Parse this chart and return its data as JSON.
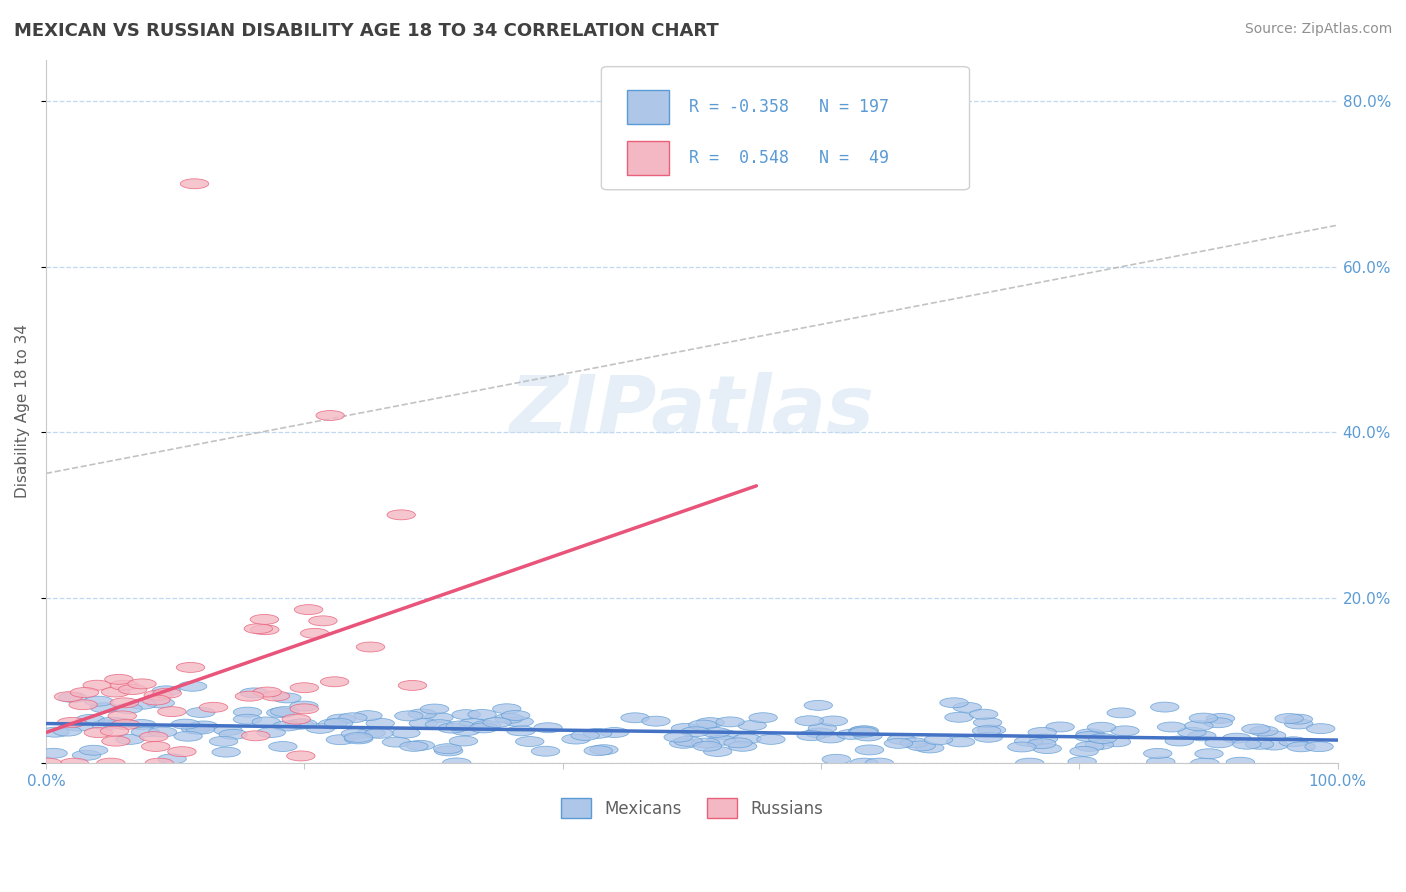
{
  "title": "MEXICAN VS RUSSIAN DISABILITY AGE 18 TO 34 CORRELATION CHART",
  "source": "Source: ZipAtlas.com",
  "ylabel": "Disability Age 18 to 34",
  "xlim": [
    0.0,
    1.0
  ],
  "ylim": [
    0.0,
    0.85
  ],
  "x_ticks": [
    0.0,
    0.2,
    0.4,
    0.6,
    0.8,
    1.0
  ],
  "x_tick_labels": [
    "0.0%",
    "",
    "",
    "",
    "",
    "100.0%"
  ],
  "y_ticks": [
    0.0,
    0.2,
    0.4,
    0.6,
    0.8
  ],
  "y_tick_labels_right": [
    "",
    "20.0%",
    "40.0%",
    "60.0%",
    "80.0%"
  ],
  "mexican_color": "#aec6e8",
  "russian_color": "#f4b8c4",
  "mexican_edge_color": "#5b9bd5",
  "russian_edge_color": "#e8607a",
  "trend_mexican_color": "#4472c4",
  "trend_russian_color": "#e8547a",
  "R_mexican": -0.358,
  "N_mexican": 197,
  "R_russian": 0.548,
  "N_russian": 49,
  "legend_label_mexican": "Mexicans",
  "legend_label_russian": "Russians",
  "title_color": "#404040",
  "axis_color": "#5b9bd5",
  "grid_color": "#c0d8f0",
  "background_color": "#ffffff",
  "watermark_text": "ZIPatlas",
  "seed": 42,
  "dash_line_x": [
    0.0,
    1.0
  ],
  "dash_line_y": [
    0.35,
    0.65
  ]
}
